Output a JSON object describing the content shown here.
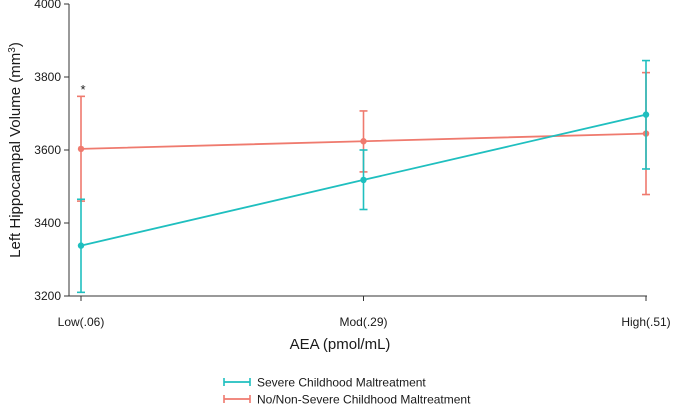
{
  "chart_data": {
    "type": "line",
    "xlabel": "AEA (pmol/mL)",
    "ylabel": "Left Hippocampal Volume (mm",
    "ylabel_sup": "3",
    "ylabel_close": ")",
    "categories": [
      "Low(.06)",
      "Mod(.29)",
      "High(.51)"
    ],
    "ylim": [
      3200,
      4000
    ],
    "yticks": [
      "3200",
      "3400",
      "3600",
      "3800",
      "4000"
    ],
    "grid": false,
    "legend_position": "bottom",
    "series": [
      {
        "name": "Severe Childhood Maltreatment",
        "color": "#1fbfbf",
        "values": [
          3338,
          3518,
          3697
        ],
        "ci_low": [
          3210,
          3437,
          3548
        ],
        "ci_high": [
          3465,
          3600,
          3845
        ]
      },
      {
        "name": "No/Non-Severe Childhood Maltreatment",
        "color": "#ef7a6e",
        "values": [
          3603,
          3624,
          3645
        ],
        "ci_low": [
          3460,
          3540,
          3478
        ],
        "ci_high": [
          3747,
          3707,
          3812
        ]
      }
    ],
    "annotations": [
      {
        "text": "*",
        "category_index": 0,
        "y": 3770
      }
    ]
  }
}
